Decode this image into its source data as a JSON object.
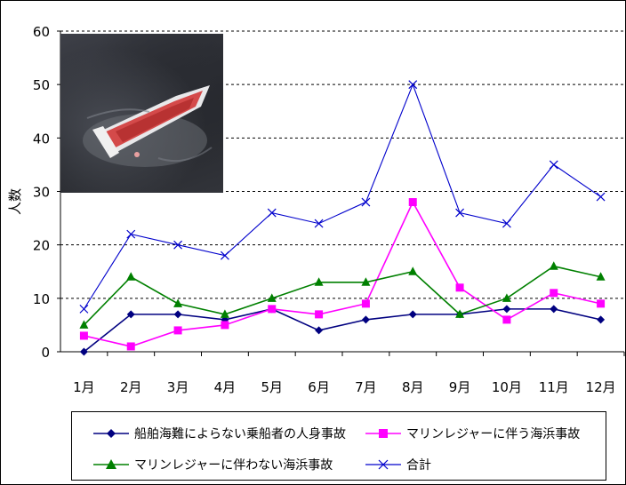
{
  "chart_data": {
    "type": "line",
    "title": "",
    "xlabel": "",
    "ylabel": "人数",
    "ylim": [
      0,
      60
    ],
    "yticks": [
      0,
      10,
      20,
      30,
      40,
      50,
      60
    ],
    "categories": [
      "1月",
      "2月",
      "3月",
      "4月",
      "5月",
      "6月",
      "7月",
      "8月",
      "9月",
      "10月",
      "11月",
      "12月"
    ],
    "grid": "horizontal dashed",
    "legend_position": "bottom",
    "series": [
      {
        "name": "船舶海難によらない乗船者の人身事故",
        "color": "#000080",
        "marker": "diamond",
        "values": [
          0,
          7,
          7,
          6,
          8,
          4,
          6,
          7,
          7,
          8,
          8,
          6
        ]
      },
      {
        "name": "マリンレジャーに伴う海浜事故",
        "color": "#ff00ff",
        "marker": "square",
        "values": [
          3,
          1,
          4,
          5,
          8,
          7,
          9,
          28,
          12,
          6,
          11,
          9
        ]
      },
      {
        "name": "マリンレジャーに伴わない海浜事故",
        "color": "#008000",
        "marker": "triangle",
        "values": [
          5,
          14,
          9,
          7,
          10,
          13,
          13,
          15,
          7,
          10,
          16,
          14
        ]
      },
      {
        "name": "合計",
        "color": "#0000cc",
        "marker": "x",
        "values": [
          8,
          22,
          20,
          18,
          26,
          24,
          28,
          50,
          26,
          24,
          35,
          29
        ]
      }
    ]
  },
  "photo": {
    "icon": "capsized-boat-photo"
  }
}
